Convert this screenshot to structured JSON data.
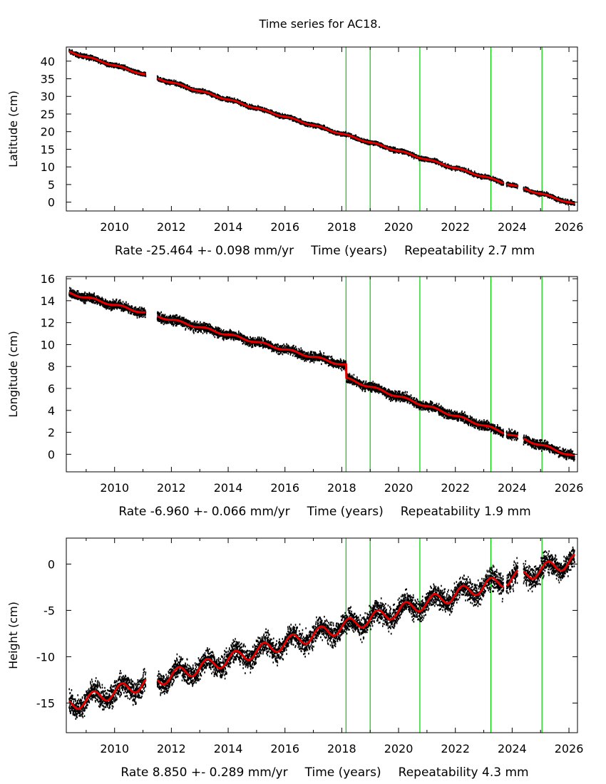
{
  "title": "Time series for AC18.",
  "colors": {
    "data": "#000000",
    "model": "#e00000",
    "event_line": "#00cc00"
  },
  "chart_data": [
    {
      "type": "line",
      "name": "latitude",
      "ylabel": "Latitude (cm)",
      "xlim": [
        2008.3,
        2026.3
      ],
      "ylim": [
        -2.5,
        44
      ],
      "xticks": [
        2010,
        2012,
        2014,
        2016,
        2018,
        2020,
        2022,
        2024,
        2026
      ],
      "yticks": [
        0,
        5,
        10,
        15,
        20,
        25,
        30,
        35,
        40
      ],
      "caption": {
        "rate": "Rate -25.464 +- 0.098 mm/yr",
        "xlabel": "Time (years)",
        "repeat": "Repeatability 2.7 mm"
      },
      "event_lines": [
        2018.15,
        2019.0,
        2020.75,
        2023.25,
        2025.05
      ],
      "data_gaps": [
        [
          2011.1,
          2011.5
        ],
        [
          2023.7,
          2023.8
        ],
        [
          2024.2,
          2024.4
        ]
      ],
      "trend": [
        [
          2008.4,
          42.7
        ],
        [
          2026.2,
          -0.5
        ]
      ],
      "seasonal_amp": 0.2,
      "noise": 0.5,
      "series": [
        {
          "name": "data",
          "x": [
            2008.4,
            2011.0,
            2011.6,
            2014.0,
            2016.0,
            2018.15,
            2020.0,
            2022.0,
            2023.7,
            2024.5,
            2026.2
          ],
          "values": [
            42.7,
            36.0,
            34.5,
            28.5,
            23.5,
            18.0,
            14.0,
            9.5,
            5.0,
            3.0,
            -0.5
          ]
        }
      ]
    },
    {
      "type": "line",
      "name": "longitude",
      "ylabel": "Longitude (cm)",
      "xlim": [
        2008.3,
        2026.3
      ],
      "ylim": [
        -1.6,
        16.2
      ],
      "xticks": [
        2010,
        2012,
        2014,
        2016,
        2018,
        2020,
        2022,
        2024,
        2026
      ],
      "yticks": [
        0,
        2,
        4,
        6,
        8,
        10,
        12,
        14,
        16
      ],
      "caption": {
        "rate": "Rate -6.960 +- 0.066 mm/yr",
        "xlabel": "Time (years)",
        "repeat": "Repeatability 1.9 mm"
      },
      "event_lines": [
        2018.15,
        2019.0,
        2020.75,
        2023.25,
        2025.05
      ],
      "data_gaps": [
        [
          2011.1,
          2011.5
        ],
        [
          2023.7,
          2023.8
        ],
        [
          2024.2,
          2024.4
        ]
      ],
      "trend": [
        [
          2008.4,
          14.7
        ],
        [
          2018.15,
          8.1
        ],
        [
          2018.16,
          6.9
        ],
        [
          2026.2,
          -0.2
        ]
      ],
      "seasonal_amp": 0.1,
      "noise": 0.35,
      "series": [
        {
          "name": "data",
          "x": [
            2008.4,
            2011.0,
            2011.6,
            2014.0,
            2016.0,
            2018.1,
            2018.2,
            2020.0,
            2022.0,
            2024.0,
            2026.2
          ],
          "values": [
            14.7,
            13.0,
            12.5,
            11.0,
            9.7,
            8.1,
            6.9,
            5.6,
            3.6,
            2.0,
            -0.2
          ]
        }
      ]
    },
    {
      "type": "line",
      "name": "height",
      "ylabel": "Height (cm)",
      "xlim": [
        2008.3,
        2026.3
      ],
      "ylim": [
        -18.2,
        2.8
      ],
      "xticks": [
        2010,
        2012,
        2014,
        2016,
        2018,
        2020,
        2022,
        2024,
        2026
      ],
      "yticks": [
        0,
        -5,
        -10,
        -15
      ],
      "caption": {
        "rate": "Rate 8.850 +- 0.289 mm/yr",
        "xlabel": "Time (years)",
        "repeat": "Repeatability 4.3 mm"
      },
      "event_lines": [
        2018.15,
        2019.0,
        2020.75,
        2023.25,
        2025.05
      ],
      "data_gaps": [
        [
          2011.1,
          2011.5
        ],
        [
          2023.7,
          2023.8
        ],
        [
          2024.2,
          2024.4
        ]
      ],
      "trend": [
        [
          2008.4,
          -15.2
        ],
        [
          2026.2,
          0.4
        ]
      ],
      "seasonal_amp": 0.7,
      "noise": 1.0,
      "series": [
        {
          "name": "data",
          "x": [
            2008.4,
            2010.0,
            2012.0,
            2014.0,
            2016.0,
            2018.0,
            2020.0,
            2022.0,
            2024.0,
            2026.0
          ],
          "values": [
            -15.5,
            -13.7,
            -11.8,
            -10.1,
            -8.4,
            -6.6,
            -4.9,
            -3.0,
            -1.3,
            0.3
          ]
        }
      ]
    }
  ]
}
